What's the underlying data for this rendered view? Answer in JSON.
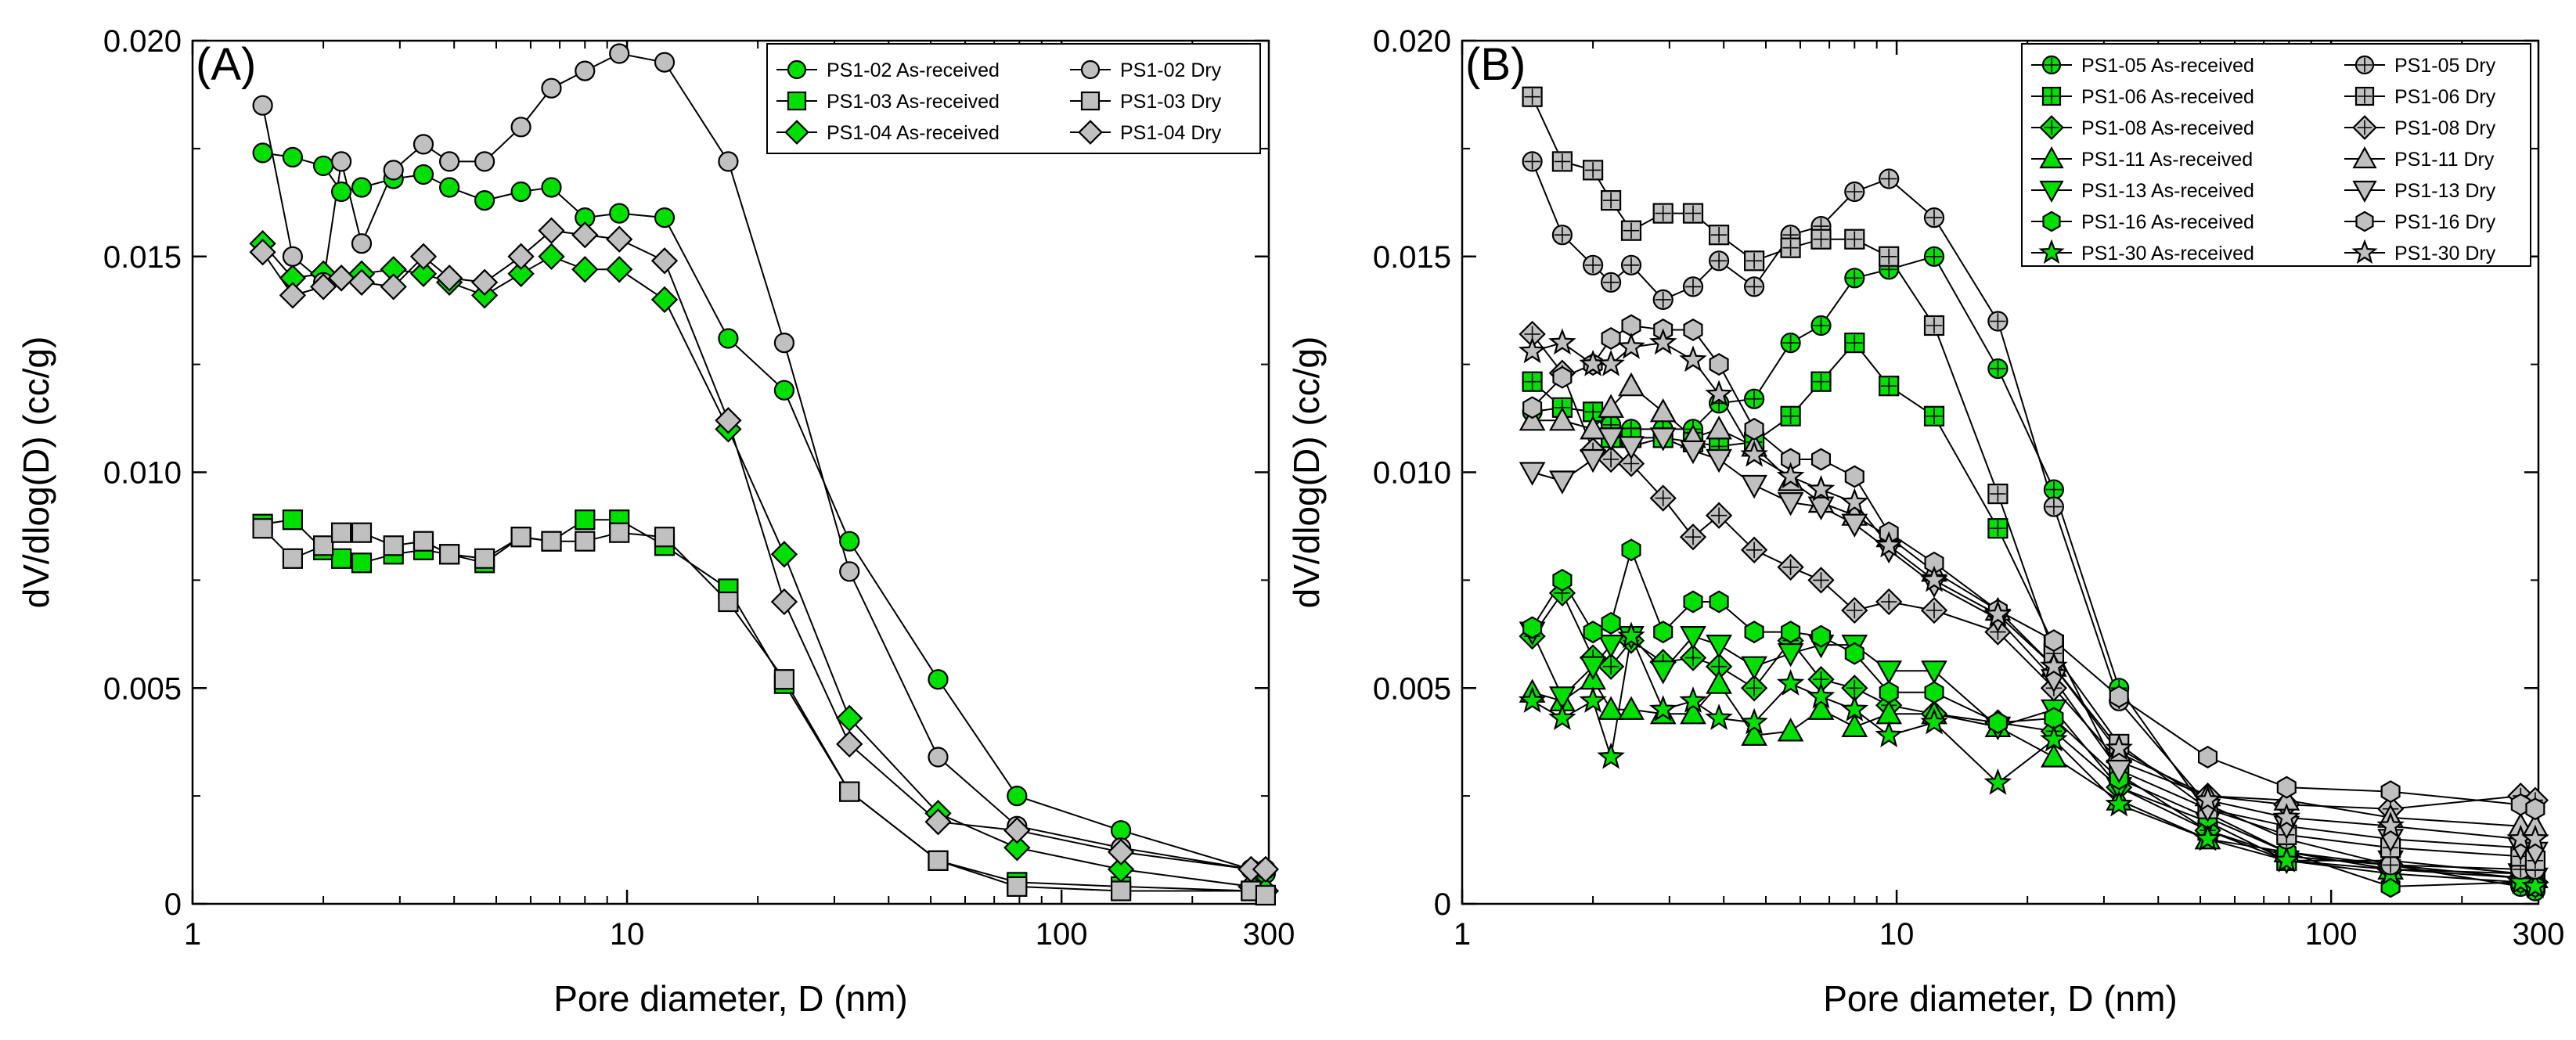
{
  "chart_data": [
    {
      "type": "line",
      "panel_label": "(A)",
      "xscale": "log",
      "xlim": [
        1,
        300
      ],
      "ylim": [
        0,
        0.02
      ],
      "xlabel": "Pore diameter, D (nm)",
      "ylabel": "dV/dlog(D) (cc/g)",
      "x_ticks": [
        "1",
        "10",
        "100",
        "300"
      ],
      "y_ticks": [
        "0",
        "0.005",
        "0.010",
        "0.015",
        "0.020"
      ],
      "legend_position": "top-right",
      "legend_columns": 2,
      "x": [
        1.45,
        1.7,
        2.0,
        2.2,
        2.45,
        2.9,
        3.4,
        3.9,
        4.7,
        5.7,
        6.7,
        8.0,
        9.6,
        12.2,
        17.1,
        23.0,
        32.5,
        52.0,
        79.0,
        137.0,
        273.0,
        295.0
      ],
      "series": [
        {
          "name": "PS1-02 As-received",
          "marker": "circle",
          "fill": "#00e000",
          "values": [
            0.0174,
            0.0173,
            0.0171,
            0.0165,
            0.0166,
            0.0168,
            0.0169,
            0.0166,
            0.0163,
            0.0165,
            0.0166,
            0.0159,
            0.016,
            0.0159,
            0.0131,
            0.0119,
            0.0084,
            0.0052,
            0.0025,
            0.0017,
            0.0008,
            0.0007
          ]
        },
        {
          "name": "PS1-03 As-received",
          "marker": "square",
          "fill": "#00e000",
          "values": [
            0.0088,
            0.0089,
            0.0082,
            0.008,
            0.0079,
            0.0081,
            0.0082,
            0.0081,
            0.0079,
            0.0085,
            0.0084,
            0.0089,
            0.0089,
            0.0083,
            0.0073,
            0.0051,
            0.0026,
            0.001,
            0.0005,
            0.0004,
            0.0003,
            0.0002
          ]
        },
        {
          "name": "PS1-04 As-received",
          "marker": "diamond",
          "fill": "#00e000",
          "values": [
            0.0153,
            0.0145,
            0.0146,
            0.0145,
            0.0146,
            0.0147,
            0.0146,
            0.0144,
            0.0141,
            0.0146,
            0.015,
            0.0147,
            0.0147,
            0.014,
            0.011,
            0.0081,
            0.0043,
            0.0021,
            0.0013,
            0.0008,
            0.0004,
            0.0003
          ]
        },
        {
          "name": "PS1-02 Dry",
          "marker": "circle",
          "fill": "#c0c0c0",
          "values": [
            0.0185,
            0.015,
            0.0144,
            0.0172,
            0.0153,
            0.017,
            0.0176,
            0.0172,
            0.0172,
            0.018,
            0.0189,
            0.0193,
            0.0197,
            0.0195,
            0.0172,
            0.013,
            0.0077,
            0.0034,
            0.0018,
            0.0013,
            0.0008,
            0.0008
          ]
        },
        {
          "name": "PS1-03 Dry",
          "marker": "square",
          "fill": "#c0c0c0",
          "values": [
            0.0087,
            0.008,
            0.0083,
            0.0086,
            0.0086,
            0.0083,
            0.0084,
            0.0081,
            0.008,
            0.0085,
            0.0084,
            0.0084,
            0.0086,
            0.0085,
            0.007,
            0.0052,
            0.0026,
            0.001,
            0.0004,
            0.0003,
            0.0003,
            0.0002
          ]
        },
        {
          "name": "PS1-04 Dry",
          "marker": "diamond",
          "fill": "#c0c0c0",
          "values": [
            0.0151,
            0.0141,
            0.0143,
            0.0145,
            0.0144,
            0.0143,
            0.015,
            0.0145,
            0.0144,
            0.015,
            0.0156,
            0.0155,
            0.0154,
            0.0149,
            0.0112,
            0.007,
            0.0037,
            0.0019,
            0.0017,
            0.0012,
            0.0008,
            0.0008
          ]
        }
      ]
    },
    {
      "type": "line",
      "panel_label": "(B)",
      "xscale": "log",
      "xlim": [
        1,
        300
      ],
      "ylim": [
        0,
        0.02
      ],
      "xlabel": "Pore diameter, D (nm)",
      "ylabel": "dV/dlog(D) (cc/g)",
      "x_ticks": [
        "1",
        "10",
        "100",
        "300"
      ],
      "y_ticks": [
        "0",
        "0.005",
        "0.010",
        "0.015",
        "0.020"
      ],
      "legend_position": "top-right",
      "legend_columns": 2,
      "x": [
        1.45,
        1.7,
        2.0,
        2.2,
        2.45,
        2.9,
        3.4,
        3.9,
        4.7,
        5.7,
        6.7,
        8.0,
        9.6,
        12.2,
        17.1,
        23.0,
        32.5,
        52.0,
        79.0,
        137.0,
        273.0,
        295.0
      ],
      "series": [
        {
          "name": "PS1-05 As-received",
          "marker": "circle-plus",
          "fill": "#00e000",
          "values": [
            0.0114,
            0.0115,
            0.0114,
            0.0111,
            0.011,
            0.011,
            0.011,
            0.0116,
            0.0117,
            0.013,
            0.0134,
            0.0145,
            0.0147,
            0.015,
            0.0124,
            0.0096,
            0.005,
            0.0021,
            0.0012,
            0.0009,
            0.0004,
            0.0003
          ]
        },
        {
          "name": "PS1-06 As-received",
          "marker": "square-plus",
          "fill": "#00e000",
          "values": [
            0.0121,
            0.0115,
            0.0114,
            0.0108,
            0.0108,
            0.0108,
            0.0107,
            0.0106,
            0.0107,
            0.0113,
            0.0121,
            0.013,
            0.012,
            0.0113,
            0.0087,
            0.006,
            0.003,
            0.0017,
            0.001,
            0.0008,
            0.0006,
            0.0005
          ]
        },
        {
          "name": "PS1-08 As-received",
          "marker": "diamond-plus",
          "fill": "#00e000",
          "values": [
            0.0062,
            0.0072,
            0.0057,
            0.0055,
            0.0061,
            0.0056,
            0.0057,
            0.0055,
            0.005,
            0.0061,
            0.0052,
            0.005,
            0.0046,
            0.0044,
            0.0042,
            0.004,
            0.0027,
            0.0017,
            0.0011,
            0.0009,
            0.0006,
            0.0005
          ]
        },
        {
          "name": "PS1-11 As-received",
          "marker": "triangle-up",
          "fill": "#00e000",
          "values": [
            0.0049,
            0.0047,
            0.0052,
            0.0045,
            0.0045,
            0.0044,
            0.0044,
            0.0051,
            0.0039,
            0.004,
            0.0045,
            0.0041,
            0.0044,
            0.0044,
            0.0041,
            0.0034,
            0.0024,
            0.0015,
            0.0012,
            0.0008,
            0.0007,
            0.0006
          ]
        },
        {
          "name": "PS1-13 As-received",
          "marker": "triangle-down",
          "fill": "#00e000",
          "values": [
            0.0063,
            0.0048,
            0.0055,
            0.006,
            0.0062,
            0.0054,
            0.0062,
            0.006,
            0.0055,
            0.0058,
            0.006,
            0.006,
            0.0054,
            0.0054,
            0.0041,
            0.0045,
            0.0027,
            0.0019,
            0.001,
            0.001,
            0.0007,
            0.0006
          ]
        },
        {
          "name": "PS1-16 As-received",
          "marker": "hexagon",
          "fill": "#00e000",
          "values": [
            0.0064,
            0.0075,
            0.0063,
            0.0065,
            0.0082,
            0.0063,
            0.007,
            0.007,
            0.0063,
            0.0063,
            0.0062,
            0.0058,
            0.0049,
            0.0049,
            0.0042,
            0.0043,
            0.0029,
            0.002,
            0.0012,
            0.0004,
            0.0005,
            0.0004
          ]
        },
        {
          "name": "PS1-30 As-received",
          "marker": "star",
          "fill": "#00e000",
          "values": [
            0.0047,
            0.0043,
            0.0047,
            0.0034,
            0.0062,
            0.0045,
            0.0047,
            0.0043,
            0.0042,
            0.0051,
            0.0048,
            0.0045,
            0.0039,
            0.0042,
            0.0028,
            0.0038,
            0.0023,
            0.0015,
            0.001,
            0.0007,
            0.0005,
            0.0004
          ]
        },
        {
          "name": "PS1-05 Dry",
          "marker": "circle-plus",
          "fill": "#c0c0c0",
          "values": [
            0.0172,
            0.0155,
            0.0148,
            0.0144,
            0.0148,
            0.014,
            0.0143,
            0.0149,
            0.0143,
            0.0155,
            0.0157,
            0.0165,
            0.0168,
            0.0159,
            0.0135,
            0.0092,
            0.0047,
            0.0023,
            0.0015,
            0.0009,
            0.0008,
            0.0008
          ]
        },
        {
          "name": "PS1-06 Dry",
          "marker": "square-plus",
          "fill": "#c0c0c0",
          "values": [
            0.0187,
            0.0172,
            0.017,
            0.0163,
            0.0156,
            0.016,
            0.016,
            0.0155,
            0.0149,
            0.0152,
            0.0154,
            0.0154,
            0.015,
            0.0134,
            0.0095,
            0.0058,
            0.0037,
            0.0022,
            0.0016,
            0.0013,
            0.0011,
            0.001
          ]
        },
        {
          "name": "PS1-08 Dry",
          "marker": "diamond-plus",
          "fill": "#c0c0c0",
          "values": [
            0.0132,
            0.0123,
            0.0105,
            0.0103,
            0.0102,
            0.0094,
            0.0085,
            0.009,
            0.0082,
            0.0078,
            0.0075,
            0.0068,
            0.007,
            0.0068,
            0.0063,
            0.005,
            0.0033,
            0.0025,
            0.0023,
            0.0022,
            0.0025,
            0.0024
          ]
        },
        {
          "name": "PS1-11 Dry",
          "marker": "triangle-up",
          "fill": "#c0c0c0",
          "values": [
            0.0112,
            0.0112,
            0.011,
            0.0115,
            0.012,
            0.0114,
            0.0108,
            0.011,
            0.0106,
            0.0098,
            0.0093,
            0.009,
            0.0085,
            0.0077,
            0.0068,
            0.0055,
            0.0035,
            0.0025,
            0.0024,
            0.002,
            0.0018,
            0.0018
          ]
        },
        {
          "name": "PS1-13 Dry",
          "marker": "triangle-down",
          "fill": "#c0c0c0",
          "values": [
            0.01,
            0.0098,
            0.0103,
            0.0108,
            0.0106,
            0.0108,
            0.0105,
            0.0103,
            0.0097,
            0.0093,
            0.0092,
            0.0088,
            0.0082,
            0.0074,
            0.0066,
            0.0052,
            0.0031,
            0.0022,
            0.0018,
            0.0015,
            0.0013,
            0.0012
          ]
        },
        {
          "name": "PS1-16 Dry",
          "marker": "hexagon",
          "fill": "#c0c0c0",
          "values": [
            0.0115,
            0.0122,
            0.0125,
            0.0131,
            0.0134,
            0.0133,
            0.0133,
            0.0125,
            0.011,
            0.0103,
            0.0103,
            0.0099,
            0.0086,
            0.0079,
            0.0068,
            0.0061,
            0.0048,
            0.0034,
            0.0027,
            0.0026,
            0.0023,
            0.0022
          ]
        },
        {
          "name": "PS1-30 Dry",
          "marker": "star",
          "fill": "#c0c0c0",
          "values": [
            0.0128,
            0.013,
            0.0125,
            0.0125,
            0.0129,
            0.013,
            0.0126,
            0.0118,
            0.0104,
            0.0099,
            0.0096,
            0.0093,
            0.0083,
            0.0075,
            0.0067,
            0.0055,
            0.0036,
            0.0024,
            0.002,
            0.0018,
            0.0015,
            0.0015
          ]
        }
      ]
    }
  ]
}
